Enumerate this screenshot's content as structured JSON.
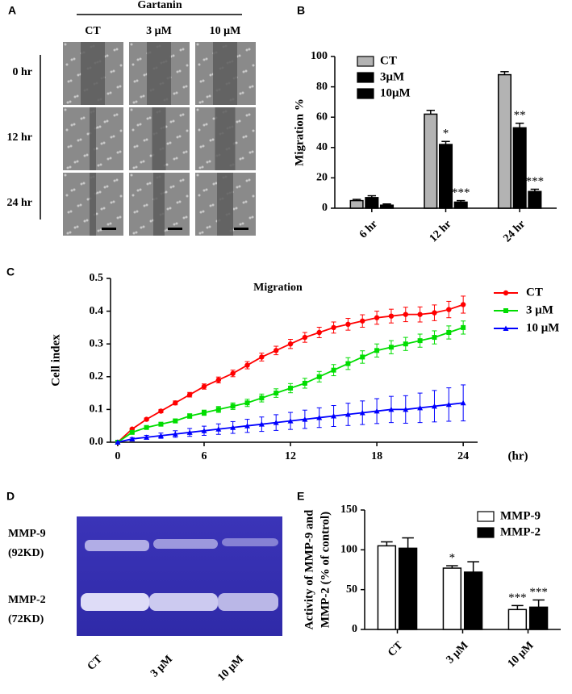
{
  "panel_a": {
    "label": "A",
    "treatment": "Gartanin",
    "columns": [
      "CT",
      "3 μM",
      "10 μM"
    ],
    "rows": [
      "0 hr",
      "12 hr",
      "24 hr"
    ]
  },
  "panel_d": {
    "label": "D",
    "bands": [
      [
        "MMP-9",
        "(92KD)"
      ],
      [
        "MMP-2",
        "(72KD)"
      ]
    ],
    "lanes": [
      "CT",
      "3 μM",
      "10 μM"
    ]
  },
  "chart_data": [
    {
      "type": "bar",
      "panel_label": "B",
      "ylabel": [
        "Migration %"
      ],
      "categories": [
        "6 hr",
        "12 hr",
        "24 hr"
      ],
      "ylim": [
        0,
        100
      ],
      "yticks": [
        0,
        20,
        40,
        60,
        80,
        100
      ],
      "series": [
        {
          "name": "CT",
          "color": "#b3b3b3",
          "values": [
            5,
            62,
            88
          ],
          "errors": [
            0.8,
            2.5,
            2
          ],
          "annotations": [
            null,
            null,
            null
          ]
        },
        {
          "name": "3μM",
          "color": "#000000",
          "values": [
            7,
            42,
            53
          ],
          "errors": [
            1.2,
            2,
            3
          ],
          "annotations": [
            null,
            "*",
            "**"
          ]
        },
        {
          "name": "10μM",
          "color": "#000000",
          "values": [
            2,
            4,
            11
          ],
          "errors": [
            0.8,
            1,
            1.5
          ],
          "annotations": [
            null,
            "***",
            "***"
          ]
        }
      ]
    },
    {
      "type": "line",
      "panel_label": "C",
      "title": "Migration",
      "ylabel": [
        "Cell index"
      ],
      "xlabel": "(hr)",
      "x": [
        0,
        1,
        2,
        3,
        4,
        5,
        6,
        7,
        8,
        9,
        10,
        11,
        12,
        13,
        14,
        15,
        16,
        17,
        18,
        19,
        20,
        21,
        22,
        23,
        24
      ],
      "xlim": [
        -0.5,
        25
      ],
      "xticks": [
        0,
        6,
        12,
        18,
        24
      ],
      "ylim": [
        0,
        0.5
      ],
      "yticks": [
        {
          "value": 0,
          "label": "0.0"
        },
        0.1,
        0.2,
        0.3,
        0.4,
        0.5
      ],
      "series": [
        {
          "name": "CT",
          "color": "#ff0000",
          "marker": "circle",
          "values": [
            0,
            0.04,
            0.07,
            0.095,
            0.12,
            0.145,
            0.17,
            0.19,
            0.21,
            0.235,
            0.26,
            0.28,
            0.3,
            0.32,
            0.335,
            0.35,
            0.36,
            0.37,
            0.38,
            0.385,
            0.39,
            0.39,
            0.395,
            0.405,
            0.42
          ],
          "errors": [
            0,
            0.003,
            0.004,
            0.005,
            0.006,
            0.007,
            0.008,
            0.009,
            0.01,
            0.011,
            0.012,
            0.013,
            0.014,
            0.015,
            0.016,
            0.017,
            0.018,
            0.019,
            0.02,
            0.021,
            0.022,
            0.023,
            0.024,
            0.025,
            0.026
          ]
        },
        {
          "name": "3 μM",
          "color": "#00dd00",
          "marker": "square",
          "values": [
            0,
            0.03,
            0.045,
            0.055,
            0.065,
            0.08,
            0.09,
            0.1,
            0.11,
            0.12,
            0.135,
            0.15,
            0.165,
            0.18,
            0.2,
            0.22,
            0.24,
            0.26,
            0.28,
            0.29,
            0.3,
            0.31,
            0.32,
            0.335,
            0.35
          ],
          "errors": [
            0,
            0.003,
            0.004,
            0.005,
            0.006,
            0.007,
            0.008,
            0.009,
            0.01,
            0.011,
            0.012,
            0.013,
            0.014,
            0.015,
            0.016,
            0.017,
            0.018,
            0.019,
            0.02,
            0.02,
            0.02,
            0.02,
            0.02,
            0.02,
            0.02
          ]
        },
        {
          "name": "10 μM",
          "color": "#0000ff",
          "marker": "triangle",
          "values": [
            0,
            0.01,
            0.015,
            0.02,
            0.025,
            0.03,
            0.035,
            0.04,
            0.045,
            0.05,
            0.055,
            0.06,
            0.065,
            0.07,
            0.075,
            0.08,
            0.085,
            0.09,
            0.095,
            0.1,
            0.1,
            0.105,
            0.11,
            0.115,
            0.12
          ],
          "errors": [
            0,
            0.004,
            0.006,
            0.008,
            0.01,
            0.012,
            0.014,
            0.016,
            0.018,
            0.02,
            0.022,
            0.024,
            0.026,
            0.028,
            0.03,
            0.032,
            0.034,
            0.036,
            0.038,
            0.04,
            0.042,
            0.045,
            0.048,
            0.051,
            0.055
          ]
        }
      ]
    },
    {
      "type": "bar",
      "panel_label": "E",
      "ylabel": [
        "Activity of MMP-9 and",
        "MMP-2 (% of control)"
      ],
      "categories": [
        "CT",
        "3 μM",
        "10 μM"
      ],
      "ylim": [
        0,
        150
      ],
      "yticks": [
        0,
        50,
        100,
        150
      ],
      "series": [
        {
          "name": "MMP-9",
          "color": "#ffffff",
          "values": [
            105,
            77,
            25
          ],
          "errors": [
            5,
            3,
            5
          ],
          "annotations": [
            null,
            "*",
            "***"
          ]
        },
        {
          "name": "MMP-2",
          "color": "#000000",
          "values": [
            102,
            72,
            28
          ],
          "errors": [
            13,
            13,
            9
          ],
          "annotations": [
            null,
            null,
            "***"
          ]
        }
      ]
    }
  ]
}
